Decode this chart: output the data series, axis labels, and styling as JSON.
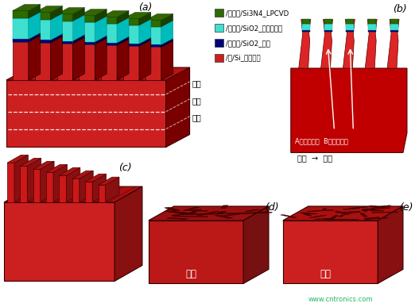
{
  "bg_color": "#ffffff",
  "red_dark": "#7A0000",
  "red_main": "#C00000",
  "red_light": "#D03030",
  "red_face": "#CC2020",
  "red_top": "#B51515",
  "teal_light": "#40E0D0",
  "teal_dark": "#00BBBB",
  "green_cap": "#2D6A00",
  "green_right": "#1A4000",
  "blue_strip": "#000080",
  "label_a": "(a)",
  "label_b": "(b)",
  "label_c": "(c)",
  "label_d": "(d)",
  "label_e": "(e)",
  "legend_items": [
    [
      "/氮化物/Si3N4_LPCVD",
      "#2D6A00"
    ],
    [
      "/氧化物/SiO2_低温氧化物",
      "#40E0D0"
    ],
    [
      "/氧化物/SiO2_加热",
      "#000080"
    ],
    [
      "/硅/Si_石英晶体",
      "#CC2020"
    ]
  ],
  "text_top": "顶部",
  "text_mid": "中部",
  "text_bot": "底部",
  "text_ab": "A点所处区域  B点所处区域",
  "text_arrow": "中部  →  边缘",
  "watermark": "www.cntronics.com"
}
